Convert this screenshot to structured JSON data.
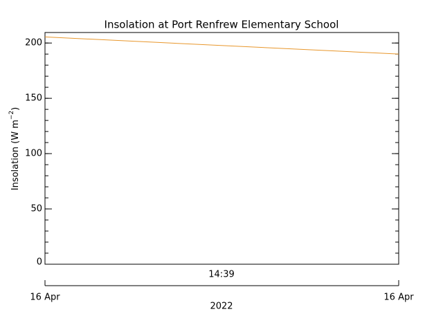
{
  "chart_data": {
    "type": "line",
    "title": "Insolation at Port Renfrew Elementary School",
    "ylabel": "Insolation (W m",
    "ylabel_sup": "−2",
    "ylabel_end": ")",
    "categories": [
      null,
      null
    ],
    "series": [
      {
        "name": "Insolation",
        "color": "#e8962a",
        "values": [
          205.5,
          190
        ]
      }
    ],
    "ylim": [
      0,
      209.5
    ],
    "yticks": [
      0,
      50,
      100,
      150,
      200
    ],
    "time_label": "14:39",
    "start_label": "16 Apr",
    "end_label": "16 Apr",
    "year_label": "2022"
  }
}
